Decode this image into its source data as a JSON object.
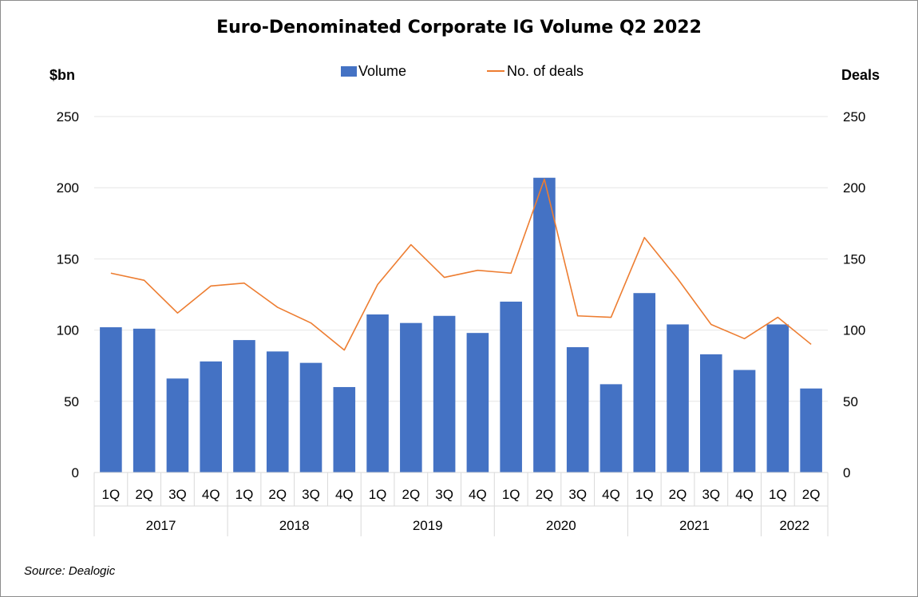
{
  "chart_data": {
    "type": "bar",
    "title": "Euro-Denominated Corporate IG Volume Q2 2022",
    "y_left_label": "$bn",
    "y_right_label": "Deals",
    "ylim": [
      0,
      250
    ],
    "y2lim": [
      0,
      250
    ],
    "y_ticks": [
      0,
      50,
      100,
      150,
      200,
      250
    ],
    "y2_ticks": [
      0,
      50,
      100,
      150,
      200,
      250
    ],
    "grid": true,
    "legend_position": "top-center",
    "categories": [
      "1Q",
      "2Q",
      "3Q",
      "4Q",
      "1Q",
      "2Q",
      "3Q",
      "4Q",
      "1Q",
      "2Q",
      "3Q",
      "4Q",
      "1Q",
      "2Q",
      "3Q",
      "4Q",
      "1Q",
      "2Q",
      "3Q",
      "4Q",
      "1Q",
      "2Q"
    ],
    "groups": [
      {
        "label": "2017",
        "count": 4
      },
      {
        "label": "2018",
        "count": 4
      },
      {
        "label": "2019",
        "count": 4
      },
      {
        "label": "2020",
        "count": 4
      },
      {
        "label": "2021",
        "count": 4
      },
      {
        "label": "2022",
        "count": 2
      }
    ],
    "series": [
      {
        "name": "Volume",
        "type": "bar",
        "axis": "left",
        "color": "#4472C4",
        "values": [
          102,
          101,
          66,
          78,
          93,
          85,
          77,
          60,
          111,
          105,
          110,
          98,
          120,
          207,
          88,
          62,
          126,
          104,
          83,
          72,
          104,
          59
        ]
      },
      {
        "name": "No. of deals",
        "type": "line",
        "axis": "right",
        "color": "#ED7D31",
        "values": [
          140,
          135,
          112,
          131,
          133,
          116,
          105,
          86,
          132,
          160,
          137,
          142,
          140,
          206,
          110,
          109,
          165,
          136,
          104,
          94,
          109,
          90
        ]
      }
    ]
  },
  "source": "Source: Dealogic"
}
